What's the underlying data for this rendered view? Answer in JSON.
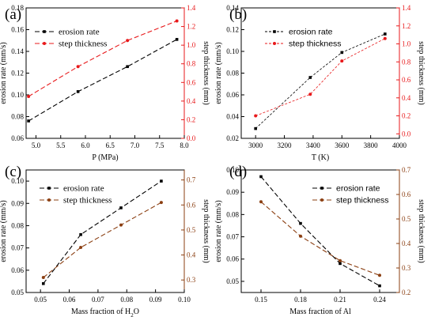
{
  "chart_data": [
    {
      "panel": "(a)",
      "type": "line",
      "x": [
        4.85,
        5.85,
        6.85,
        7.85
      ],
      "xlabel": "P (MPa)",
      "xlim": [
        4.8,
        8.0
      ],
      "xticks": [
        5.0,
        5.5,
        6.0,
        6.5,
        7.0,
        7.5,
        8.0
      ],
      "xtick_labels": [
        "5.0",
        "5.5",
        "6.0",
        "6.5",
        "7.0",
        "7.5",
        "8.0"
      ],
      "ylabel": "erosion rate (mm/s)",
      "ylim": [
        0.06,
        0.18
      ],
      "yticks": [
        0.06,
        0.08,
        0.1,
        0.12,
        0.14,
        0.16,
        0.18
      ],
      "ytick_labels": [
        "0.06",
        "0.08",
        "0.10",
        "0.12",
        "0.14",
        "0.16",
        "0.18"
      ],
      "y2label": "step thickness (mm)",
      "y2lim": [
        0.0,
        1.4
      ],
      "y2ticks": [
        0.0,
        0.2,
        0.4,
        0.6,
        0.8,
        1.0,
        1.2,
        1.4
      ],
      "y2tick_labels": [
        "0.0",
        "0.2",
        "0.4",
        "0.6",
        "0.8",
        "1.0",
        "1.2",
        "1.4"
      ],
      "legend_position": "top-left",
      "legend_style": "serif",
      "series": [
        {
          "name": "erosion rate",
          "axis": "left",
          "color": "#000000",
          "values": [
            0.076,
            0.103,
            0.126,
            0.151
          ]
        },
        {
          "name": "step thickness",
          "axis": "right",
          "color": "#e8191b",
          "values": [
            0.45,
            0.77,
            1.05,
            1.26
          ]
        }
      ]
    },
    {
      "panel": "(b)",
      "type": "line",
      "x": [
        3000,
        3380,
        3600,
        3900
      ],
      "xlabel": "T (K)",
      "xlim": [
        2900,
        4000
      ],
      "xticks": [
        3000,
        3200,
        3400,
        3600,
        3800,
        4000
      ],
      "xtick_labels": [
        "3000",
        "3200",
        "3400",
        "3600",
        "3800",
        "4000"
      ],
      "ylabel": "erosion rate (mm/s)",
      "ylim": [
        0.02,
        0.14
      ],
      "yticks": [
        0.02,
        0.04,
        0.06,
        0.08,
        0.1,
        0.12,
        0.14
      ],
      "ytick_labels": [
        "0.02",
        "0.04",
        "0.06",
        "0.08",
        "0.10",
        "0.12",
        "0.14"
      ],
      "y2label": "step thickness (mm)",
      "y2lim": [
        -0.05,
        1.4
      ],
      "y2ticks": [
        0.0,
        0.2,
        0.4,
        0.6,
        0.8,
        1.0,
        1.2,
        1.4
      ],
      "y2tick_labels": [
        "0.0",
        "0.2",
        "0.4",
        "0.6",
        "0.8",
        "1.0",
        "1.2",
        "1.4"
      ],
      "legend_position": "top-center",
      "legend_style": "sans",
      "series": [
        {
          "name": "erosion rate",
          "axis": "left",
          "color": "#000000",
          "values": [
            0.029,
            0.076,
            0.099,
            0.116
          ]
        },
        {
          "name": "step thickness",
          "axis": "right",
          "color": "#e8191b",
          "values": [
            0.2,
            0.44,
            0.81,
            1.06
          ]
        }
      ]
    },
    {
      "panel": "(c)",
      "type": "line",
      "x": [
        0.051,
        0.064,
        0.078,
        0.092
      ],
      "xlabel_parts": [
        "Mass fraction of H",
        "2",
        "O"
      ],
      "xlim": [
        0.045,
        0.1
      ],
      "xticks": [
        0.05,
        0.06,
        0.07,
        0.08,
        0.09,
        0.1
      ],
      "xtick_labels": [
        "0.05",
        "0.06",
        "0.07",
        "0.08",
        "0.09",
        "0.10"
      ],
      "ylabel": "erosion rate (mm/s)",
      "ylim": [
        0.05,
        0.105
      ],
      "yticks": [
        0.05,
        0.06,
        0.07,
        0.08,
        0.09,
        0.1
      ],
      "ytick_labels": [
        "0.05",
        "0.06",
        "0.07",
        "0.08",
        "0.09",
        "0.10"
      ],
      "y2label": "step thickness (mm)",
      "y2lim": [
        0.25,
        0.74
      ],
      "y2ticks": [
        0.3,
        0.4,
        0.5,
        0.6,
        0.7
      ],
      "y2tick_labels": [
        "0.3",
        "0.4",
        "0.5",
        "0.6",
        "0.7"
      ],
      "legend_position": "top-left",
      "legend_style": "serif",
      "series": [
        {
          "name": "erosion rate",
          "axis": "left",
          "color": "#000000",
          "values": [
            0.054,
            0.076,
            0.088,
            0.1
          ]
        },
        {
          "name": "step thickness",
          "axis": "right",
          "color": "#8b3f12",
          "values": [
            0.31,
            0.43,
            0.52,
            0.61
          ]
        }
      ]
    },
    {
      "panel": "(d)",
      "type": "line",
      "x": [
        0.15,
        0.18,
        0.21,
        0.24
      ],
      "xlabel": "Mass fraction of Al",
      "xlim": [
        0.135,
        0.255
      ],
      "xticks": [
        0.15,
        0.18,
        0.21,
        0.24
      ],
      "xtick_labels": [
        "0.15",
        "0.18",
        "0.21",
        "0.24"
      ],
      "ylabel": "erosion rate (mm/s)",
      "ylim": [
        0.045,
        0.1
      ],
      "yticks": [
        0.05,
        0.06,
        0.07,
        0.08,
        0.09,
        0.1
      ],
      "ytick_labels": [
        "0.05",
        "0.06",
        "0.07",
        "0.08",
        "0.09",
        "0.10"
      ],
      "y2label": "step thickness (mm)",
      "y2lim": [
        0.2,
        0.7
      ],
      "y2ticks": [
        0.2,
        0.3,
        0.4,
        0.5,
        0.6,
        0.7
      ],
      "y2tick_labels": [
        "0.2",
        "0.3",
        "0.4",
        "0.5",
        "0.6",
        "0.7"
      ],
      "legend_position": "top-right",
      "legend_style": "sans",
      "series": [
        {
          "name": "erosion rate",
          "axis": "left",
          "color": "#000000",
          "values": [
            0.097,
            0.076,
            0.058,
            0.048
          ]
        },
        {
          "name": "step thickness",
          "axis": "right",
          "color": "#8b3f12",
          "values": [
            0.57,
            0.43,
            0.33,
            0.27
          ]
        }
      ]
    }
  ]
}
